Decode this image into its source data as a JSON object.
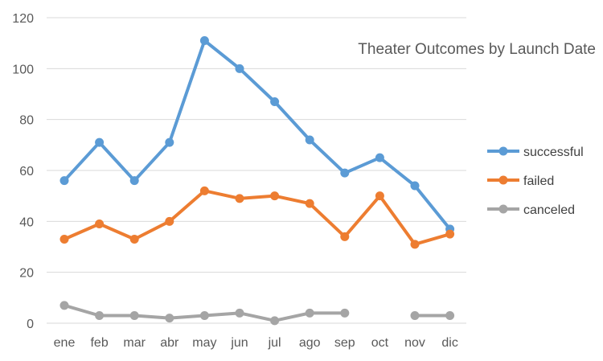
{
  "chart_data": {
    "type": "line",
    "title": "Theater Outcomes by Launch Date",
    "xlabel": "",
    "ylabel": "",
    "categories": [
      "ene",
      "feb",
      "mar",
      "abr",
      "may",
      "jun",
      "jul",
      "ago",
      "sep",
      "oct",
      "nov",
      "dic"
    ],
    "ylim": [
      0,
      120
    ],
    "yticks": [
      0,
      20,
      40,
      60,
      80,
      100,
      120
    ],
    "grid": true,
    "legend_position": "right",
    "series": [
      {
        "name": "successful",
        "color": "#5b9bd5",
        "values": [
          56,
          71,
          56,
          71,
          111,
          100,
          87,
          72,
          59,
          65,
          54,
          37
        ]
      },
      {
        "name": "failed",
        "color": "#ed7d31",
        "values": [
          33,
          39,
          33,
          40,
          52,
          49,
          50,
          47,
          34,
          50,
          31,
          35
        ]
      },
      {
        "name": "canceled",
        "color": "#a5a5a5",
        "values": [
          7,
          3,
          3,
          2,
          3,
          4,
          1,
          4,
          4,
          null,
          3,
          3
        ]
      }
    ]
  }
}
